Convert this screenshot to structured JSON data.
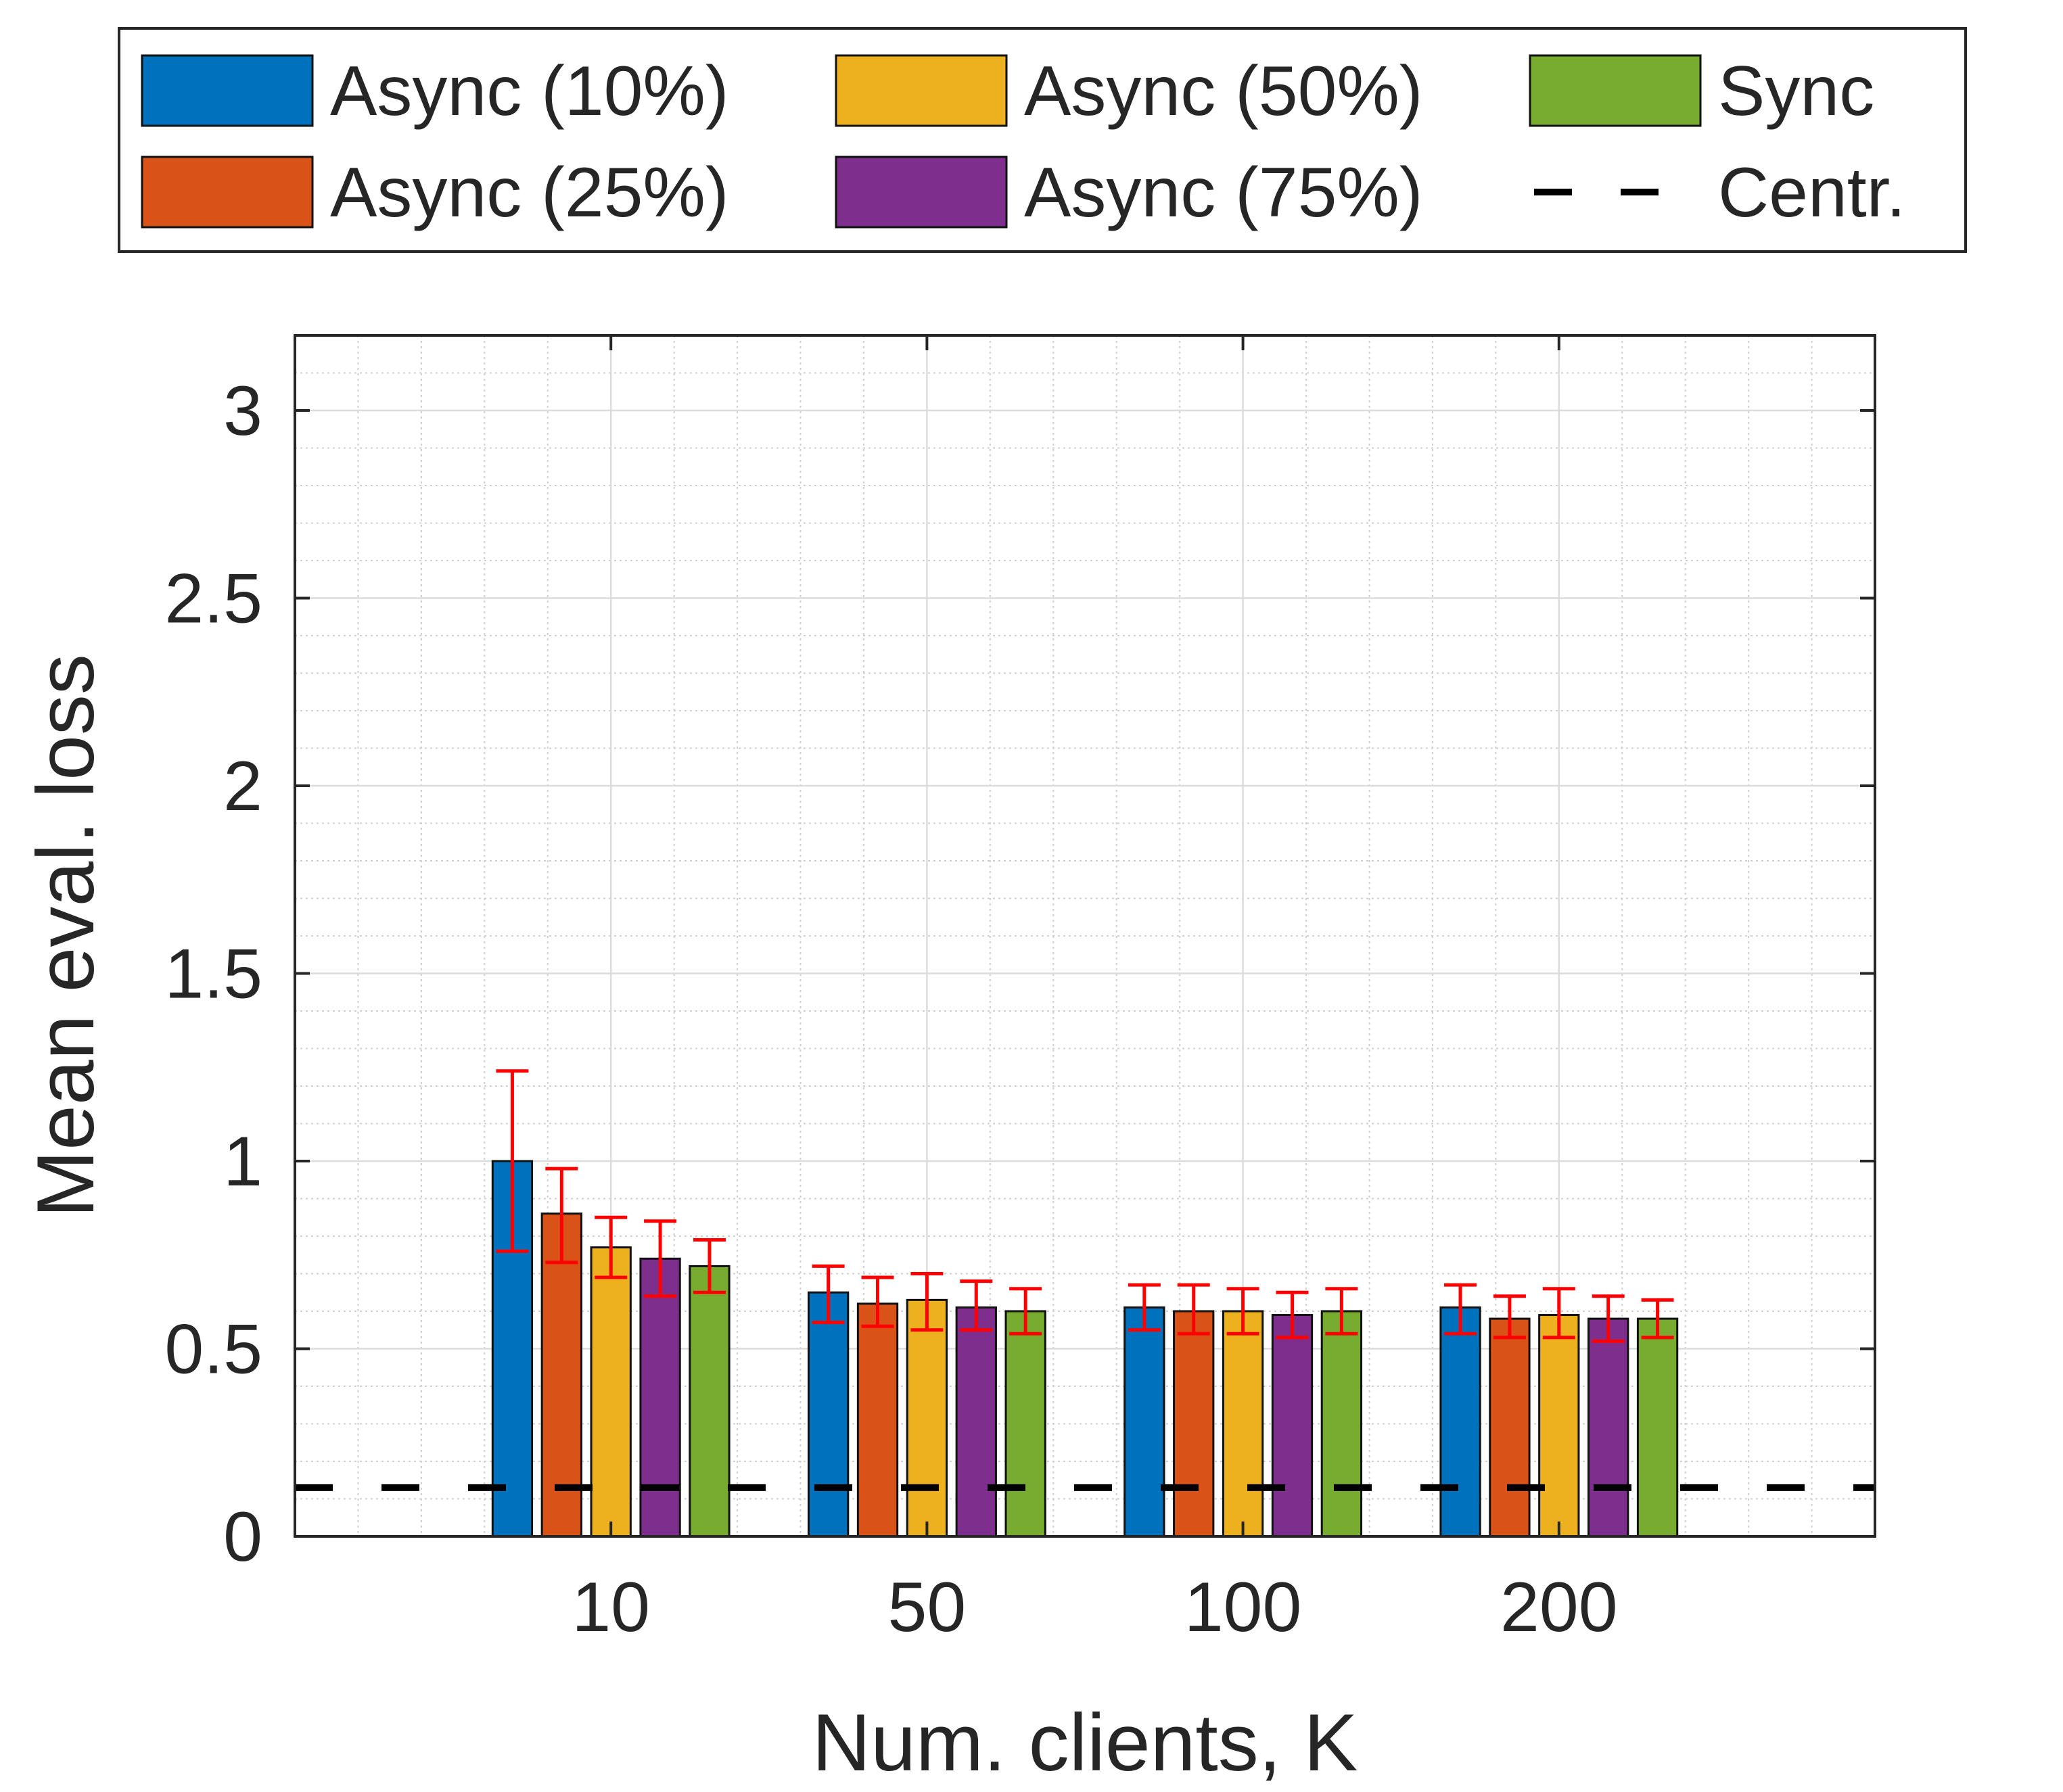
{
  "chart_data": {
    "type": "bar",
    "title": "",
    "xlabel": "Num. clients, K",
    "ylabel": "Mean eval. loss",
    "categories": [
      "10",
      "50",
      "100",
      "200"
    ],
    "ylim": [
      0,
      3.2
    ],
    "yticks": [
      0,
      0.5,
      1,
      1.5,
      2,
      2.5,
      3
    ],
    "ytick_labels": [
      "0",
      "0.5",
      "1",
      "1.5",
      "2",
      "2.5",
      "3"
    ],
    "grid": true,
    "minor_grid": true,
    "legend_position": "top",
    "series": [
      {
        "name": "Async (10%)",
        "color": "#0072BD",
        "values": [
          1.0,
          0.65,
          0.61,
          0.61
        ],
        "err_low": [
          0.76,
          0.57,
          0.55,
          0.54
        ],
        "err_high": [
          1.24,
          0.72,
          0.67,
          0.67
        ]
      },
      {
        "name": "Async (25%)",
        "color": "#D95319",
        "values": [
          0.86,
          0.62,
          0.6,
          0.58
        ],
        "err_low": [
          0.73,
          0.56,
          0.54,
          0.53
        ],
        "err_high": [
          0.98,
          0.69,
          0.67,
          0.64
        ]
      },
      {
        "name": "Async (50%)",
        "color": "#EDB120",
        "values": [
          0.77,
          0.63,
          0.6,
          0.59
        ],
        "err_low": [
          0.69,
          0.55,
          0.54,
          0.53
        ],
        "err_high": [
          0.85,
          0.7,
          0.66,
          0.66
        ]
      },
      {
        "name": "Async (75%)",
        "color": "#7E2F8E",
        "values": [
          0.74,
          0.61,
          0.59,
          0.58
        ],
        "err_low": [
          0.64,
          0.55,
          0.53,
          0.52
        ],
        "err_high": [
          0.84,
          0.68,
          0.65,
          0.64
        ]
      },
      {
        "name": "Sync",
        "color": "#77AC30",
        "values": [
          0.72,
          0.6,
          0.6,
          0.58
        ],
        "err_low": [
          0.65,
          0.54,
          0.54,
          0.53
        ],
        "err_high": [
          0.79,
          0.66,
          0.66,
          0.63
        ]
      }
    ],
    "reference_line": {
      "name": "Centr.",
      "value": 0.13,
      "color": "#000000",
      "style": "dashed"
    },
    "error_bar_color": "#FF0000"
  }
}
